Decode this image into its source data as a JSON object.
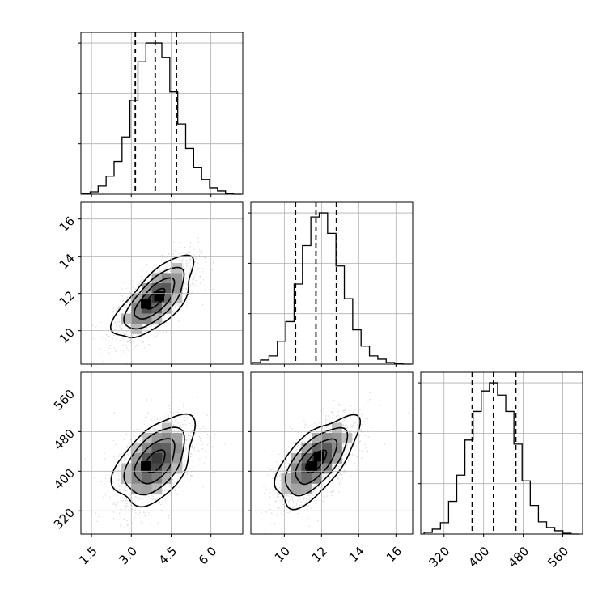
{
  "chart_data": {
    "type": "corner",
    "grid": true,
    "parameters": [
      {
        "tick_values": [
          1.5,
          3.0,
          4.5,
          6.0
        ],
        "tick_labels": [
          "1.5",
          "3.0",
          "4.5",
          "6.0"
        ],
        "range": [
          1.1,
          7.2
        ],
        "quantiles": [
          3.15,
          3.9,
          4.7
        ],
        "hist_step": 0.3,
        "hist_counts": [
          1,
          3,
          10,
          22,
          40,
          70,
          115,
          162,
          185,
          185,
          167,
          125,
          86,
          56,
          33,
          18,
          8,
          4,
          1,
          0
        ]
      },
      {
        "tick_values": [
          10,
          12,
          14,
          16
        ],
        "tick_labels": [
          "10",
          "12",
          "14",
          "16"
        ],
        "range": [
          8.2,
          16.9
        ],
        "quantiles": [
          10.6,
          11.7,
          12.8
        ],
        "hist_step": 0.45,
        "hist_counts": [
          2,
          5,
          10,
          28,
          52,
          98,
          145,
          180,
          185,
          160,
          120,
          80,
          42,
          22,
          10,
          6,
          2,
          1,
          0
        ]
      },
      {
        "tick_values": [
          320,
          400,
          480,
          560
        ],
        "tick_labels": [
          "320",
          "400",
          "480",
          "560"
        ],
        "range": [
          273,
          600
        ],
        "quantiles": [
          377,
          420,
          465
        ],
        "hist_step": 16.5,
        "hist_counts": [
          2,
          6,
          14,
          40,
          72,
          115,
          150,
          175,
          185,
          170,
          150,
          110,
          65,
          35,
          15,
          8,
          4,
          1,
          0
        ]
      }
    ],
    "pairs": [
      {
        "x_param": 0,
        "y_param": 1,
        "center": [
          3.9,
          11.7
        ],
        "sd": [
          0.75,
          1.1
        ],
        "corr": 0.7,
        "modes": [
          [
            3.55,
            11.45
          ],
          [
            4.05,
            11.85
          ]
        ]
      },
      {
        "x_param": 0,
        "y_param": 2,
        "center": [
          3.9,
          420
        ],
        "sd": [
          0.75,
          45
        ],
        "corr": 0.5,
        "modes": [
          [
            3.55,
            410
          ]
        ]
      },
      {
        "x_param": 1,
        "y_param": 2,
        "center": [
          11.7,
          420
        ],
        "sd": [
          1.1,
          45
        ],
        "corr": 0.65,
        "modes": [
          [
            11.5,
            410
          ],
          [
            11.85,
            430
          ]
        ]
      }
    ],
    "contour_levels_sigma": [
      0.5,
      1.0,
      1.5,
      2.0
    ]
  }
}
